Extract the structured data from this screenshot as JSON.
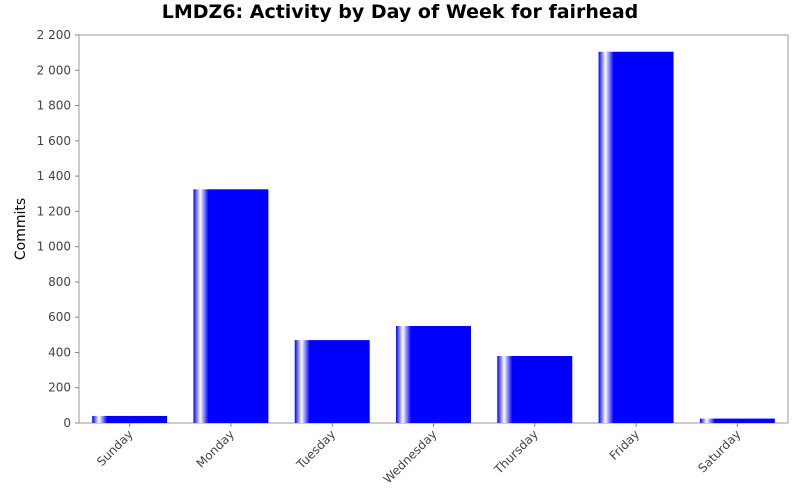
{
  "chart_data": {
    "type": "bar",
    "title": "LMDZ6: Activity by Day of Week for fairhead",
    "xlabel": "",
    "ylabel": "Commits",
    "categories": [
      "Sunday",
      "Monday",
      "Tuesday",
      "Wednesday",
      "Thursday",
      "Friday",
      "Saturday"
    ],
    "values": [
      40,
      1325,
      470,
      550,
      380,
      2105,
      25
    ],
    "ylim": [
      0,
      2200
    ],
    "yticks": [
      0,
      200,
      400,
      600,
      800,
      1000,
      1200,
      1400,
      1600,
      1800,
      2000,
      2200
    ],
    "ytick_labels": [
      "0",
      "200",
      "400",
      "600",
      "800",
      "1 000",
      "1 200",
      "1 400",
      "1 600",
      "1 800",
      "2 000",
      "2 200"
    ],
    "grid": false,
    "legend": "none",
    "bar_color": "#0000ff"
  }
}
